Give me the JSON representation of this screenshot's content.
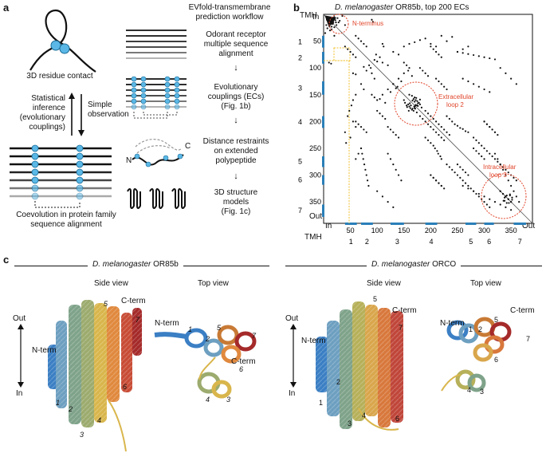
{
  "panel_a": {
    "letter": "a",
    "residue_contact_label": "3D residue contact",
    "statistical_inference": [
      "Statistical",
      "inference",
      "(evolutionary",
      "couplings)"
    ],
    "simple_observation": [
      "Simple",
      "observation"
    ],
    "coevolution_label": [
      "Coevolution in protein family",
      "sequence alignment"
    ],
    "workflow_title": [
      "EVfold-transmembrane",
      "prediction workflow"
    ],
    "steps": [
      [
        "Odorant receptor",
        "multiple sequence",
        "alignment"
      ],
      [
        "Evolutionary",
        "couplings (ECs)",
        "(Fig. 1b)"
      ],
      [
        "Distance restraints",
        "on extended",
        "polypeptide"
      ],
      [
        "3D structure",
        "models",
        "(Fig. 1c)"
      ]
    ],
    "nc_labels": {
      "n": "N",
      "c": "C"
    }
  },
  "panel_b": {
    "letter": "b",
    "title_species": "D. melanogaster",
    "title_rest": " OR85b, top 200 ECs",
    "tmh_label": "TMH",
    "in_label": "In",
    "out_label": "Out",
    "y_ticks": [
      "50",
      "100",
      "150",
      "200",
      "250",
      "300",
      "350"
    ],
    "x_ticks": [
      "50",
      "100",
      "150",
      "200",
      "250",
      "300",
      "350"
    ],
    "tmh_numbers_left": [
      "1",
      "2",
      "3",
      "4",
      "5",
      "6",
      "7"
    ],
    "tmh_numbers_bottom": [
      "1",
      "2",
      "3",
      "4",
      "5",
      "6",
      "7"
    ],
    "annotations": [
      "N-terminus",
      "Extracellular loop 2",
      "Intracellular loop 3"
    ],
    "colors": {
      "annotation": "#e0452a",
      "tmh_bar": "#2a7fb8",
      "highlight": "#f0c030"
    }
  },
  "chart_data": {
    "type": "scatter",
    "title": "D. melanogaster OR85b, top 200 ECs",
    "xlim": [
      0,
      390
    ],
    "ylim": [
      0,
      390
    ],
    "xlabel": "",
    "ylabel": "",
    "points": [
      [
        6,
        10
      ],
      [
        8,
        12
      ],
      [
        10,
        9
      ],
      [
        12,
        14
      ],
      [
        14,
        11
      ],
      [
        9,
        16
      ],
      [
        16,
        18
      ],
      [
        5,
        20
      ],
      [
        18,
        13
      ],
      [
        11,
        22
      ],
      [
        20,
        24
      ],
      [
        7,
        26
      ],
      [
        23,
        15
      ],
      [
        15,
        28
      ],
      [
        10,
        90
      ],
      [
        14,
        92
      ],
      [
        12,
        30
      ],
      [
        3,
        35
      ],
      [
        20,
        40
      ],
      [
        55,
        110
      ],
      [
        60,
        112
      ],
      [
        75,
        98
      ],
      [
        80,
        105
      ],
      [
        95,
        85
      ],
      [
        100,
        88
      ],
      [
        110,
        90
      ],
      [
        120,
        95
      ],
      [
        130,
        70
      ],
      [
        140,
        75
      ],
      [
        150,
        60
      ],
      [
        160,
        55
      ],
      [
        170,
        52
      ],
      [
        180,
        48
      ],
      [
        190,
        45
      ],
      [
        200,
        55
      ],
      [
        210,
        60
      ],
      [
        220,
        40
      ],
      [
        230,
        50
      ],
      [
        240,
        42
      ],
      [
        250,
        70
      ],
      [
        260,
        65
      ],
      [
        270,
        60
      ],
      [
        150,
        160
      ],
      [
        152,
        165
      ],
      [
        155,
        170
      ],
      [
        158,
        168
      ],
      [
        160,
        172
      ],
      [
        162,
        175
      ],
      [
        165,
        178
      ],
      [
        168,
        180
      ],
      [
        170,
        172
      ],
      [
        172,
        169
      ],
      [
        156,
        173
      ],
      [
        161,
        166
      ],
      [
        166,
        176
      ],
      [
        174,
        183
      ],
      [
        159,
        180
      ],
      [
        163,
        170
      ],
      [
        171,
        176
      ],
      [
        175,
        170
      ],
      [
        90,
        150
      ],
      [
        95,
        155
      ],
      [
        100,
        160
      ],
      [
        105,
        158
      ],
      [
        110,
        150
      ],
      [
        115,
        165
      ],
      [
        120,
        140
      ],
      [
        125,
        145
      ],
      [
        130,
        130
      ],
      [
        135,
        138
      ],
      [
        180,
        190
      ],
      [
        185,
        195
      ],
      [
        190,
        200
      ],
      [
        195,
        205
      ],
      [
        200,
        210
      ],
      [
        205,
        215
      ],
      [
        210,
        220
      ],
      [
        215,
        225
      ],
      [
        220,
        230
      ],
      [
        225,
        235
      ],
      [
        230,
        190
      ],
      [
        235,
        195
      ],
      [
        240,
        200
      ],
      [
        245,
        205
      ],
      [
        250,
        208
      ],
      [
        255,
        212
      ],
      [
        260,
        214
      ],
      [
        265,
        218
      ],
      [
        270,
        220
      ],
      [
        230,
        280
      ],
      [
        235,
        285
      ],
      [
        240,
        290
      ],
      [
        245,
        295
      ],
      [
        250,
        300
      ],
      [
        255,
        305
      ],
      [
        260,
        310
      ],
      [
        265,
        315
      ],
      [
        270,
        320
      ],
      [
        275,
        325
      ],
      [
        280,
        330
      ],
      [
        285,
        335
      ],
      [
        290,
        340
      ],
      [
        295,
        345
      ],
      [
        300,
        350
      ],
      [
        305,
        355
      ],
      [
        310,
        360
      ],
      [
        320,
        260
      ],
      [
        325,
        270
      ],
      [
        330,
        280
      ],
      [
        335,
        290
      ],
      [
        340,
        300
      ],
      [
        345,
        310
      ],
      [
        350,
        320
      ],
      [
        355,
        330
      ],
      [
        360,
        340
      ],
      [
        365,
        350
      ],
      [
        330,
        330
      ],
      [
        335,
        335
      ],
      [
        340,
        340
      ],
      [
        345,
        345
      ],
      [
        350,
        350
      ],
      [
        336,
        348
      ],
      [
        342,
        352
      ],
      [
        348,
        338
      ],
      [
        352,
        346
      ],
      [
        338,
        342
      ],
      [
        70,
        250
      ],
      [
        72,
        260
      ],
      [
        74,
        270
      ],
      [
        76,
        280
      ],
      [
        78,
        290
      ],
      [
        80,
        300
      ],
      [
        82,
        310
      ],
      [
        84,
        320
      ],
      [
        120,
        210
      ],
      [
        125,
        215
      ],
      [
        130,
        220
      ],
      [
        135,
        225
      ],
      [
        140,
        230
      ],
      [
        300,
        200
      ],
      [
        305,
        205
      ],
      [
        310,
        210
      ],
      [
        315,
        215
      ],
      [
        320,
        220
      ],
      [
        325,
        225
      ],
      [
        40,
        60
      ],
      [
        45,
        65
      ],
      [
        50,
        70
      ],
      [
        55,
        75
      ],
      [
        60,
        80
      ],
      [
        200,
        300
      ],
      [
        205,
        305
      ],
      [
        210,
        310
      ],
      [
        215,
        315
      ],
      [
        220,
        320
      ],
      [
        280,
        250
      ],
      [
        285,
        255
      ],
      [
        290,
        260
      ],
      [
        295,
        265
      ],
      [
        300,
        270
      ],
      [
        100,
        330
      ],
      [
        110,
        340
      ],
      [
        120,
        350
      ],
      [
        130,
        360
      ],
      [
        260,
        120
      ],
      [
        270,
        125
      ],
      [
        280,
        130
      ],
      [
        290,
        135
      ],
      [
        300,
        140
      ],
      [
        310,
        145
      ],
      [
        180,
        100
      ],
      [
        185,
        105
      ],
      [
        190,
        110
      ],
      [
        195,
        115
      ],
      [
        60,
        200
      ],
      [
        65,
        205
      ],
      [
        70,
        210
      ],
      [
        75,
        215
      ],
      [
        80,
        220
      ]
    ]
  },
  "panel_c": {
    "letter": "c",
    "left_species": "D. melanogaster",
    "left_rest": " OR85b",
    "right_species": "D. melanogaster",
    "right_rest": " ORCO",
    "side_view": "Side view",
    "top_view": "Top view",
    "out": "Out",
    "in": "In",
    "n_term": "N-term",
    "c_term": "C-term",
    "helix_numbers": [
      "1",
      "2",
      "3",
      "4",
      "5",
      "6",
      "7"
    ]
  }
}
